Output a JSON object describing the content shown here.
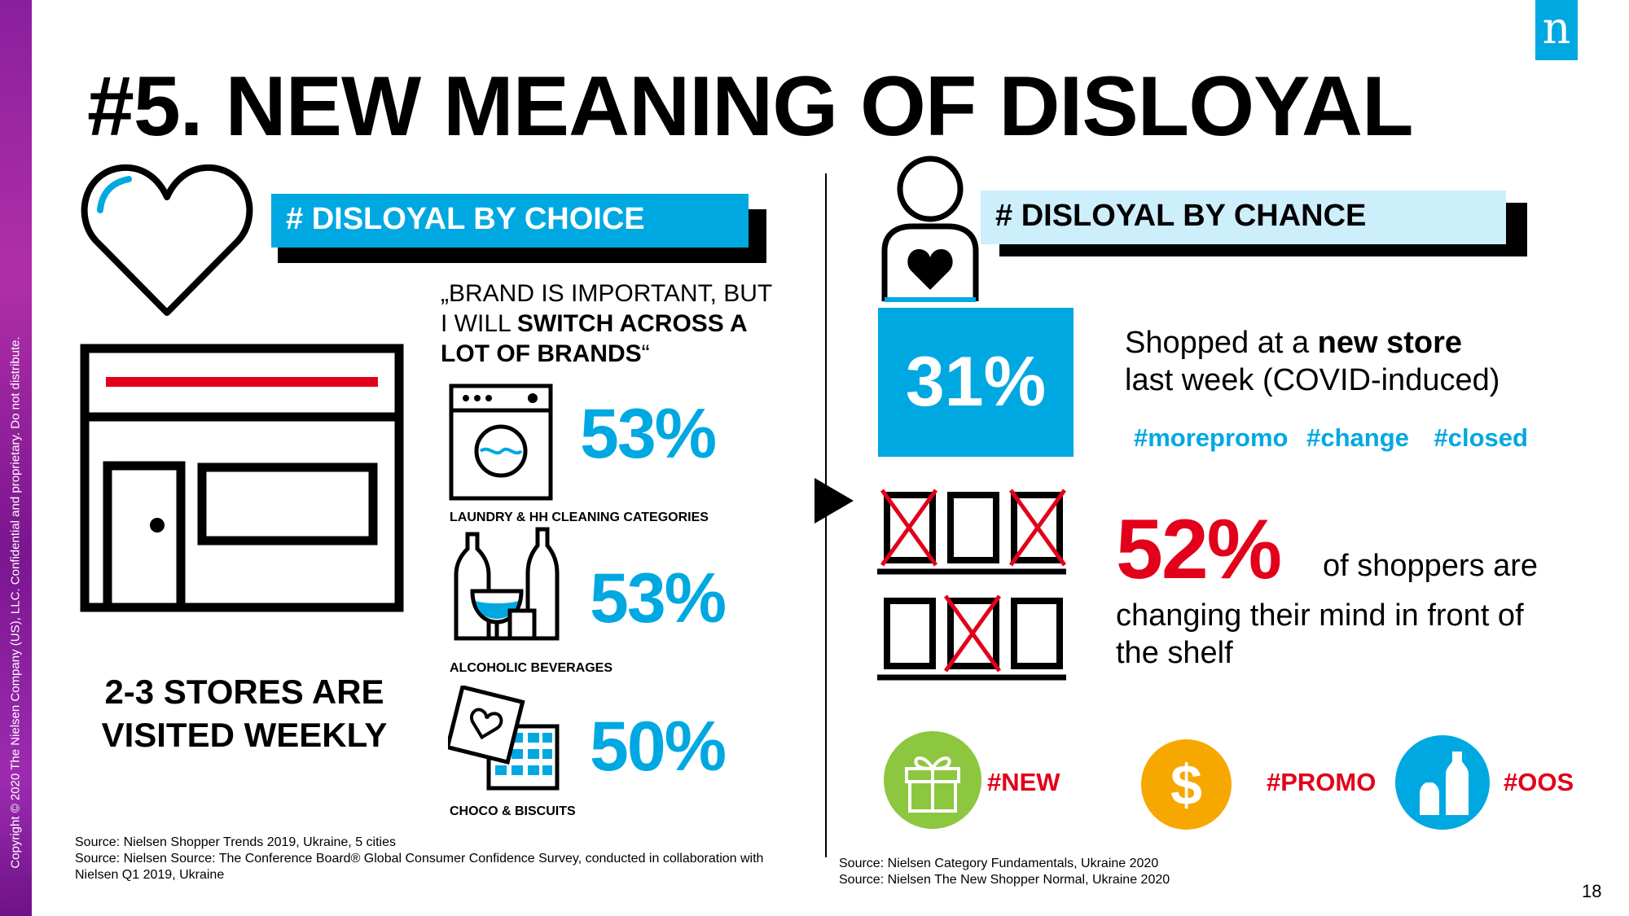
{
  "copyright": "Copyright © 2020 The Nielsen Company (US), LLC. Confidential and proprietary. Do not distribute.",
  "logo": "n",
  "title": "#5. NEW MEANING OF DISLOYAL",
  "left": {
    "banner": "# DISLOYAL BY CHOICE",
    "quote": {
      "line1": "„BRAND IS IMPORTANT, BUT",
      "line2_plain": " I WILL ",
      "line2_bold": "SWITCH ACROSS A",
      "line3_bold": "LOT OF BRANDS",
      "line3_end": "“"
    },
    "stats": [
      {
        "value": "53%",
        "label": "LAUNDRY & HH CLEANING CATEGORIES"
      },
      {
        "value": "53%",
        "label": "ALCOHOLIC BEVERAGES"
      },
      {
        "value": "50%",
        "label": "CHOCO & BISCUITS"
      }
    ],
    "stores_line1": "2-3 STORES ARE",
    "stores_line2": "VISITED WEEKLY",
    "sources": [
      "Source: Nielsen Shopper Trends 2019, Ukraine, 5 cities",
      "Source: Nielsen Source: The Conference Board® Global Consumer Confidence Survey, conducted in collaboration with",
      "Nielsen Q1 2019, Ukraine"
    ]
  },
  "right": {
    "banner": "# DISLOYAL BY CHANCE",
    "pct31": "31%",
    "shopped_plain": "Shopped at a ",
    "shopped_bold": "new store",
    "shopped_line2": "last week (COVID-induced)",
    "hashtags": [
      "#morepromo",
      "#change",
      "#closed"
    ],
    "pct52": "52%",
    "of_shoppers": "of shoppers are",
    "changing_line1": "changing their mind in front of",
    "changing_line2": "the shelf",
    "tags": [
      "#NEW",
      "#PROMO",
      "#OOS"
    ],
    "sources": [
      "Source: Nielsen Category Fundamentals, Ukraine 2020",
      "Source: Nielsen The New Shopper Normal, Ukraine 2020"
    ]
  },
  "page_number": "18",
  "colors": {
    "accent_blue": "#00a8e1",
    "light_blue": "#cdeefb",
    "red": "#e2001a",
    "green": "#8dc63f",
    "orange": "#f7a800",
    "purple": "#8a1f9e"
  },
  "icons": [
    "heart-icon",
    "store-icon",
    "washing-machine-icon",
    "bottles-glass-icon",
    "chocolate-icon",
    "person-heart-icon",
    "play-arrow-icon",
    "shelf-checkboxes-icon",
    "gift-icon",
    "dollar-icon",
    "bottles-icon"
  ]
}
